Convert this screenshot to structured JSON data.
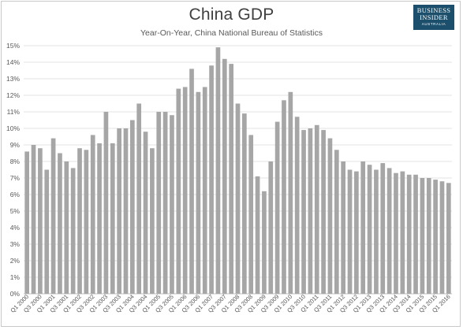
{
  "header": {
    "title": "China GDP",
    "subtitle": "Year-On-Year, China National Bureau of Statistics"
  },
  "logo": {
    "line1": "BUSINESS",
    "line2": "INSIDER",
    "line3": "AUSTRALIA",
    "bg_color": "#1c4f6b"
  },
  "chart_data": {
    "type": "bar",
    "title": "China GDP",
    "subtitle": "Year-On-Year, China National Bureau of Statistics",
    "xlabel": "",
    "ylabel": "",
    "ylim": [
      0,
      15
    ],
    "y_ticks": [
      "0%",
      "1%",
      "2%",
      "3%",
      "4%",
      "5%",
      "6%",
      "7%",
      "8%",
      "9%",
      "10%",
      "11%",
      "12%",
      "13%",
      "14%",
      "15%"
    ],
    "grid": true,
    "legend": "none",
    "bar_color": "#a6a6a6",
    "categories": [
      "Q1 2000",
      "Q2 2000",
      "Q3 2000",
      "Q4 2000",
      "Q1 2001",
      "Q2 2001",
      "Q3 2001",
      "Q4 2001",
      "Q1 2002",
      "Q2 2002",
      "Q3 2002",
      "Q4 2002",
      "Q1 2003",
      "Q2 2003",
      "Q3 2003",
      "Q4 2003",
      "Q1 2004",
      "Q2 2004",
      "Q3 2004",
      "Q4 2004",
      "Q1 2005",
      "Q2 2005",
      "Q3 2005",
      "Q4 2005",
      "Q1 2006",
      "Q2 2006",
      "Q3 2006",
      "Q4 2006",
      "Q1 2007",
      "Q2 2007",
      "Q3 2007",
      "Q4 2007",
      "Q1 2008",
      "Q2 2008",
      "Q3 2008",
      "Q4 2008",
      "Q1 2009",
      "Q2 2009",
      "Q3 2009",
      "Q4 2009",
      "Q1 2010",
      "Q2 2010",
      "Q3 2010",
      "Q4 2010",
      "Q1 2011",
      "Q2 2011",
      "Q3 2011",
      "Q4 2011",
      "Q1 2012",
      "Q2 2012",
      "Q3 2012",
      "Q4 2012",
      "Q1 2013",
      "Q2 2013",
      "Q3 2013",
      "Q4 2013",
      "Q1 2014",
      "Q2 2014",
      "Q3 2014",
      "Q4 2014",
      "Q1 2015",
      "Q2 2015",
      "Q3 2015",
      "Q4 2015",
      "Q1 2016"
    ],
    "x_tick_labels": [
      "Q1 2000",
      "",
      "Q3 2000",
      "",
      "Q1 2001",
      "",
      "Q3 2001",
      "",
      "Q1 2002",
      "",
      "Q3 2002",
      "",
      "Q1 2003",
      "",
      "Q3 2003",
      "",
      "Q1 2004",
      "",
      "Q3 2004",
      "",
      "Q1 2005",
      "",
      "Q3 2005",
      "",
      "Q1 2006",
      "",
      "Q3 2006",
      "",
      "Q1 2007",
      "",
      "Q3 2007",
      "",
      "Q1 2008",
      "",
      "Q3 2008",
      "",
      "Q1 2009",
      "",
      "Q3 2009",
      "",
      "Q1 2010",
      "",
      "Q3 2010",
      "",
      "Q1 2011",
      "",
      "Q3 2011",
      "",
      "Q1 2012",
      "",
      "Q3 2012",
      "",
      "Q1 2013",
      "",
      "Q3 2013",
      "",
      "Q1 2014",
      "",
      "Q3 2014",
      "",
      "Q1 2015",
      "",
      "Q3 2015",
      "",
      "Q1 2016"
    ],
    "values": [
      8.6,
      9.0,
      8.8,
      7.5,
      9.4,
      8.5,
      8.0,
      7.6,
      8.8,
      8.7,
      9.6,
      9.1,
      11.0,
      9.1,
      10.0,
      10.0,
      10.5,
      11.5,
      9.8,
      8.8,
      11.0,
      11.0,
      10.8,
      12.4,
      12.5,
      13.6,
      12.2,
      12.5,
      13.8,
      14.9,
      14.2,
      13.9,
      11.5,
      10.9,
      9.6,
      7.1,
      6.2,
      8.0,
      10.4,
      11.7,
      12.2,
      10.7,
      9.9,
      10.0,
      10.2,
      9.9,
      9.4,
      8.7,
      8.0,
      7.5,
      7.4,
      8.0,
      7.8,
      7.5,
      7.9,
      7.6,
      7.3,
      7.4,
      7.2,
      7.2,
      7.0,
      7.0,
      6.9,
      6.8,
      6.7
    ]
  }
}
